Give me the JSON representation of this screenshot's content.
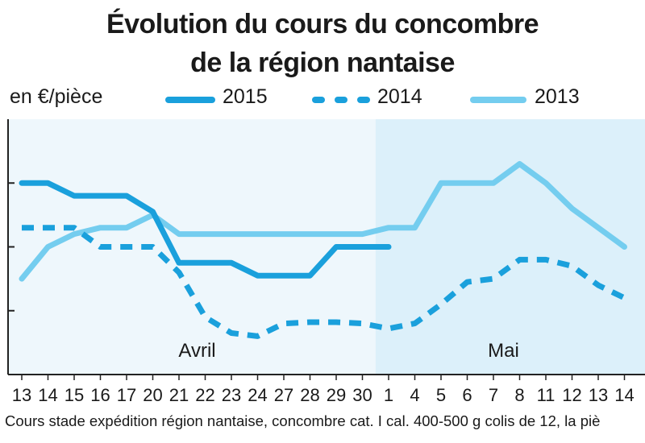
{
  "chart_data": {
    "type": "line",
    "title": "Évolution du cours du concombre",
    "subtitle": "de la région nantaise",
    "ylabel": "en €/pièce",
    "ylim": [
      0,
      4
    ],
    "yticks": [
      1,
      2,
      3
    ],
    "y_tick_labels_printed": false,
    "grid": false,
    "legend_position": "top",
    "categories": [
      "13",
      "14",
      "15",
      "16",
      "17",
      "20",
      "21",
      "22",
      "23",
      "24",
      "27",
      "28",
      "29",
      "30",
      "1",
      "4",
      "5",
      "6",
      "7",
      "8",
      "11",
      "12",
      "13",
      "14"
    ],
    "month_labels": [
      "Avril",
      "Mai"
    ],
    "may_shading_starts_at": "1",
    "series": [
      {
        "name": "2015",
        "style": "solid",
        "color": "#1aa0dc",
        "values": [
          3.0,
          3.0,
          2.8,
          2.8,
          2.8,
          2.55,
          1.75,
          1.75,
          1.75,
          1.55,
          1.55,
          1.55,
          2.0,
          2.0,
          2.0,
          null,
          null,
          null,
          null,
          null,
          null,
          null,
          null,
          null
        ]
      },
      {
        "name": "2014",
        "style": "dashed",
        "color": "#1aa0dc",
        "values": [
          2.3,
          2.3,
          2.3,
          2.0,
          2.0,
          2.0,
          1.6,
          0.9,
          0.65,
          0.6,
          0.8,
          0.82,
          0.82,
          0.8,
          0.72,
          0.8,
          1.1,
          1.45,
          1.5,
          1.8,
          1.8,
          1.7,
          1.4,
          1.2
        ]
      },
      {
        "name": "2013",
        "style": "solid",
        "color": "#74cdef",
        "values": [
          1.5,
          2.0,
          2.2,
          2.3,
          2.3,
          2.5,
          2.2,
          2.2,
          2.2,
          2.2,
          2.2,
          2.2,
          2.2,
          2.2,
          2.3,
          2.3,
          3.0,
          3.0,
          3.0,
          3.3,
          3.0,
          2.6,
          2.3,
          2.0
        ]
      }
    ],
    "footnote": "Cours stade expédition région nantaise, concombre cat. I cal. 400-500 g colis de 12, la piè"
  },
  "colors": {
    "april_background": "#eef7fc",
    "may_background": "#dcf0fa",
    "axis": "#222222"
  }
}
